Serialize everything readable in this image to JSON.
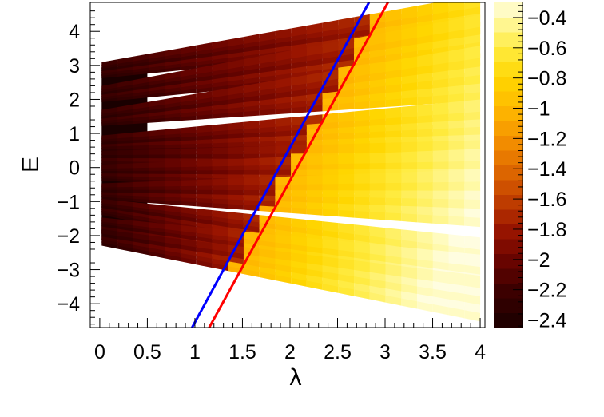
{
  "chart_data": {
    "type": "heatmap",
    "title": "",
    "xlabel": "λ",
    "ylabel": "E",
    "xlim": [
      -0.1,
      4.05
    ],
    "ylim": [
      -4.7,
      4.85
    ],
    "x_ticks": [
      0,
      0.5,
      1,
      1.5,
      2,
      2.5,
      3,
      3.5,
      4
    ],
    "x_tick_labels": [
      "0",
      "0.5",
      "1",
      "1.5",
      "2",
      "2.5",
      "3",
      "3.5",
      "4"
    ],
    "y_ticks": [
      -4,
      -3,
      -2,
      -1,
      0,
      1,
      2,
      3,
      4
    ],
    "y_tick_labels": [
      "−4",
      "−3",
      "−2",
      "−1",
      "0",
      "1",
      "2",
      "3",
      "4"
    ],
    "colorbar": {
      "range": [
        -2.45,
        -0.3
      ],
      "ticks": [
        -0.4,
        -0.6,
        -0.8,
        -1,
        -1.2,
        -1.4,
        -1.6,
        -1.8,
        -2,
        -2.2,
        -2.4
      ],
      "tick_labels": [
        "−0.4",
        "−0.6",
        "−0.8",
        "−1",
        "−1.2",
        "−1.4",
        "−1.6",
        "−1.8",
        "−2",
        "−2.2",
        "−2.4"
      ],
      "stops": [
        {
          "value": -2.45,
          "color": "#1a0000"
        },
        {
          "value": -2.2,
          "color": "#3d0000"
        },
        {
          "value": -2.0,
          "color": "#6a0400"
        },
        {
          "value": -1.8,
          "color": "#9a1500"
        },
        {
          "value": -1.6,
          "color": "#c24000"
        },
        {
          "value": -1.4,
          "color": "#e06a00"
        },
        {
          "value": -1.2,
          "color": "#f59200"
        },
        {
          "value": -1.0,
          "color": "#ffb800"
        },
        {
          "value": -0.8,
          "color": "#ffd600"
        },
        {
          "value": -0.6,
          "color": "#ffeb40"
        },
        {
          "value": -0.4,
          "color": "#fff9a8"
        },
        {
          "value": -0.3,
          "color": "#fffde0"
        }
      ]
    },
    "region": {
      "x0": 0.02,
      "x_cut": 1.95,
      "x_end": 4.0,
      "e_min": -2.12,
      "e_max": 2.92
    },
    "band_groups": [
      {
        "e0": 2.85,
        "slope": 0.39,
        "spread": 0.45,
        "n": 6
      },
      {
        "e0": 2.15,
        "slope": 0.4,
        "spread": 0.55,
        "n": 6
      },
      {
        "e0": 1.45,
        "slope": 0.33,
        "spread": 0.65,
        "n": 6
      },
      {
        "e0": 0.7,
        "slope": 0.14,
        "spread": 0.55,
        "n": 6
      },
      {
        "e0": 0.25,
        "slope": -0.02,
        "spread": 0.4,
        "n": 5
      },
      {
        "e0": -0.15,
        "slope": -0.01,
        "spread": 0.55,
        "n": 6
      },
      {
        "e0": -0.7,
        "slope": -0.05,
        "spread": 0.7,
        "n": 6
      },
      {
        "e0": -1.15,
        "slope": -0.42,
        "spread": 0.6,
        "n": 6
      },
      {
        "e0": -1.7,
        "slope": -0.4,
        "spread": 0.55,
        "n": 6
      },
      {
        "e0": -2.05,
        "slope": -0.45,
        "spread": 0.45,
        "n": 5
      }
    ],
    "lines": [
      {
        "name": "blue",
        "color": "#0000ff",
        "points": [
          [
            0.97,
            -4.7
          ],
          [
            2.83,
            4.85
          ]
        ]
      },
      {
        "name": "red",
        "color": "#ff0000",
        "points": [
          [
            1.15,
            -4.7
          ],
          [
            3.03,
            4.85
          ]
        ]
      }
    ]
  }
}
